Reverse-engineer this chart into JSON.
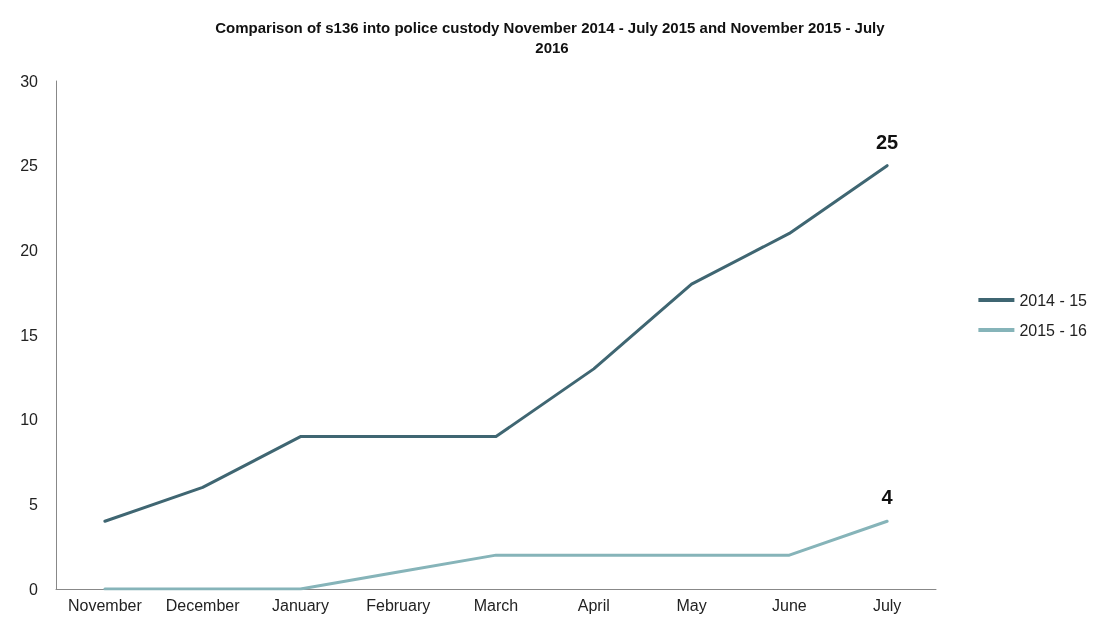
{
  "chart_data": {
    "type": "line",
    "title": "Comparison of s136 into police custody November 2014 - July 2015 and November 2015 - July 2016",
    "categories": [
      "November",
      "December",
      "January",
      "February",
      "March",
      "April",
      "May",
      "June",
      "July"
    ],
    "series": [
      {
        "name": "2014 - 15",
        "color": "#3f6672",
        "values": [
          4,
          6,
          9,
          9,
          9,
          13,
          18,
          21,
          25
        ],
        "value_labels": [
          null,
          null,
          null,
          null,
          null,
          null,
          null,
          null,
          "25"
        ]
      },
      {
        "name": "2015 - 16",
        "color": "#86b4b9",
        "values": [
          0,
          0,
          0,
          1,
          2,
          2,
          2,
          2,
          4
        ],
        "value_labels": [
          null,
          null,
          null,
          null,
          null,
          null,
          null,
          null,
          "4"
        ]
      }
    ],
    "ylim": [
      0,
      30
    ],
    "yticks": [
      0,
      5,
      10,
      15,
      20,
      25,
      30
    ],
    "grid": false,
    "legend": "right",
    "marker": "none",
    "line_style": "solid"
  }
}
